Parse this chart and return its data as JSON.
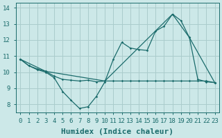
{
  "xlabel": "Humidex (Indice chaleur)",
  "xlim": [
    -0.5,
    23.5
  ],
  "ylim": [
    7.5,
    14.3
  ],
  "xticks": [
    0,
    1,
    2,
    3,
    4,
    5,
    6,
    7,
    8,
    9,
    10,
    11,
    12,
    13,
    14,
    15,
    16,
    17,
    18,
    19,
    20,
    21,
    22,
    23
  ],
  "yticks": [
    8,
    9,
    10,
    11,
    12,
    13,
    14
  ],
  "background_color": "#cce8e8",
  "grid_color": "#aacccc",
  "line_color": "#1a6b6b",
  "line1_x": [
    0,
    1,
    2,
    3,
    4,
    5,
    6,
    7,
    8,
    9,
    10,
    11,
    12,
    13,
    14,
    15,
    16,
    17,
    18,
    19,
    20,
    21,
    22,
    23
  ],
  "line1_y": [
    10.8,
    10.4,
    10.15,
    10.0,
    9.65,
    8.8,
    8.25,
    7.75,
    7.85,
    8.5,
    9.4,
    10.8,
    11.85,
    11.5,
    11.4,
    11.35,
    12.55,
    12.85,
    13.6,
    13.2,
    12.15,
    9.55,
    9.4,
    9.35
  ],
  "line2_x": [
    0,
    1,
    2,
    3,
    4,
    5,
    6,
    7,
    8,
    9,
    10,
    11,
    12,
    13,
    14,
    15,
    16,
    17,
    18,
    19,
    20,
    21,
    22,
    23
  ],
  "line2_y": [
    10.8,
    10.4,
    10.2,
    10.05,
    9.75,
    9.55,
    9.5,
    9.45,
    9.5,
    9.4,
    9.45,
    9.45,
    9.45,
    9.45,
    9.45,
    9.45,
    9.45,
    9.45,
    9.45,
    9.45,
    9.45,
    9.45,
    9.45,
    9.35
  ],
  "line3_x": [
    0,
    3,
    10,
    18,
    20,
    23
  ],
  "line3_y": [
    10.8,
    10.05,
    9.45,
    13.6,
    12.15,
    9.35
  ],
  "font_family": "monospace",
  "xlabel_fontsize": 8,
  "tick_fontsize": 6.5
}
